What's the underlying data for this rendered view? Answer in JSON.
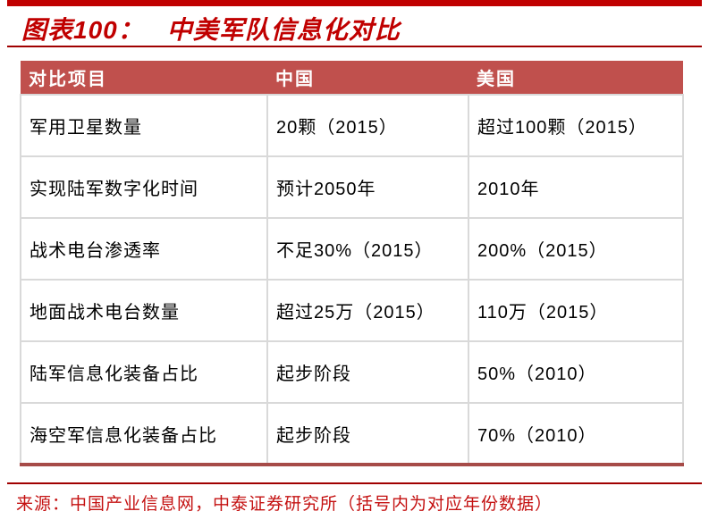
{
  "title": {
    "prefix": "图表100：",
    "text": "中美军队信息化对比"
  },
  "colors": {
    "accent_bar": "#C00000",
    "title_text": "#C00000",
    "divider": "#A00000",
    "header_bg": "#C0504D",
    "header_text": "#FFFFFF",
    "cell_border": "#D9D9D9",
    "table_bottom_border": "#A64B48",
    "body_text": "#000000",
    "source_text": "#C41111"
  },
  "table": {
    "headers": [
      "对比项目",
      "中国",
      "美国"
    ],
    "rows": [
      [
        "军用卫星数量",
        "20颗（2015）",
        "超过100颗（2015）"
      ],
      [
        "实现陆军数字化时间",
        "预计2050年",
        "2010年"
      ],
      [
        "战术电台渗透率",
        "不足30%（2015）",
        "200%（2015）"
      ],
      [
        "地面战术电台数量",
        "超过25万（2015）",
        "110万（2015）"
      ],
      [
        "陆军信息化装备占比",
        "起步阶段",
        "50%（2010）"
      ],
      [
        "海空军信息化装备占比",
        "起步阶段",
        "70%（2010）"
      ]
    ]
  },
  "source": {
    "text": "来源：中国产业信息网，中泰证券研究所（括号内为对应年份数据）"
  }
}
